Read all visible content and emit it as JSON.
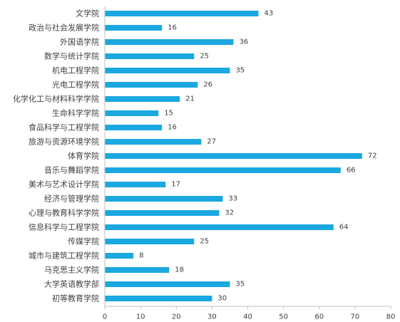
{
  "chart_data": {
    "type": "bar",
    "orientation": "horizontal",
    "title": "",
    "xlabel": "",
    "ylabel": "",
    "xlim": [
      0,
      80
    ],
    "x_ticks": [
      0,
      10,
      20,
      30,
      40,
      50,
      60,
      70,
      80
    ],
    "grid": false,
    "legend": "none",
    "bar_color": "#1BA8E0",
    "categories": [
      "文学院",
      "政治与社会发展学院",
      "外国语学院",
      "数学与统计学院",
      "机电工程学院",
      "光电工程学院",
      "化学化工与材料科学学院",
      "生命科学学院",
      "食品科学与工程学院",
      "旅游与资源环境学院",
      "体育学院",
      "音乐与舞蹈学院",
      "美术与艺术设计学院",
      "经济与管理学院",
      "心理与教育科学学院",
      "信息科学与工程学院",
      "传媒学院",
      "城市与建筑工程学院",
      "马克思主义学院",
      "大学英语教学部",
      "初等教育学院"
    ],
    "values": [
      43,
      16,
      36,
      25,
      35,
      26,
      21,
      15,
      16,
      27,
      72,
      66,
      17,
      33,
      32,
      64,
      25,
      8,
      18,
      35,
      30
    ]
  }
}
